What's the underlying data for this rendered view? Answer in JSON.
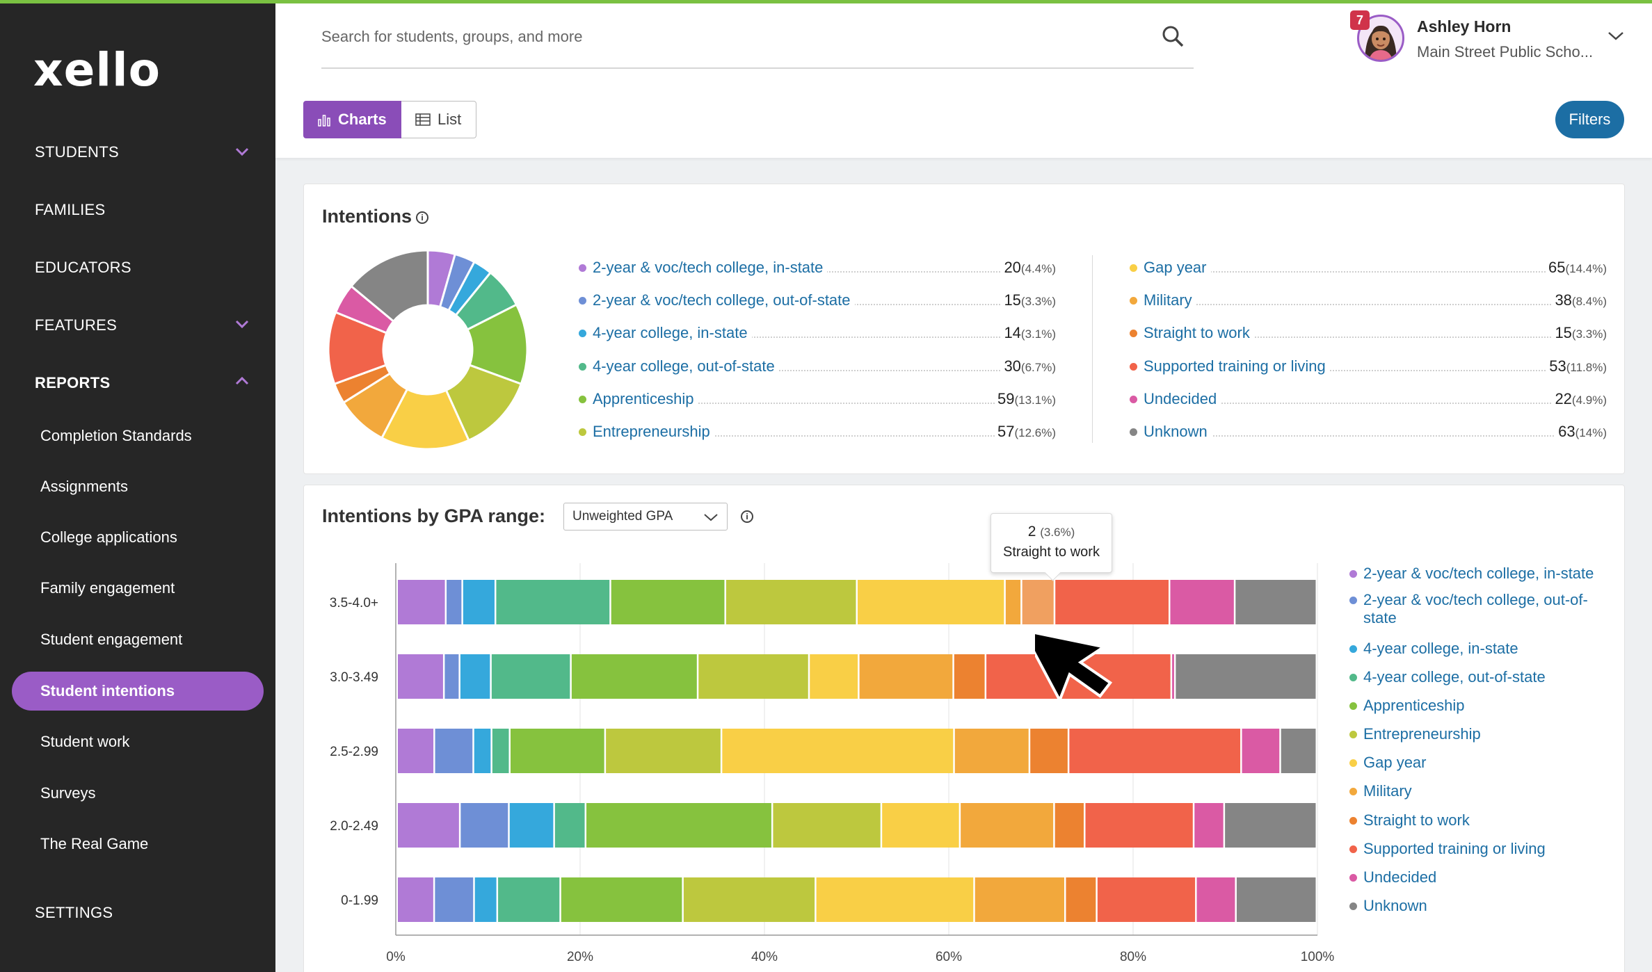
{
  "brand": {
    "logo": "xello",
    "accent": "#7ac142",
    "primary": "#9a5cc6",
    "link": "#1c6ea4"
  },
  "sidebar": {
    "top_items": [
      {
        "label": "STUDENTS",
        "expanded": false
      },
      {
        "label": "FAMILIES"
      },
      {
        "label": "EDUCATORS"
      },
      {
        "label": "FEATURES",
        "expanded": false
      },
      {
        "label": "REPORTS",
        "expanded": true
      }
    ],
    "report_items": [
      "Completion Standards",
      "Assignments",
      "College applications",
      "Family engagement",
      "Student engagement",
      "Student intentions",
      "Student work",
      "Surveys",
      "The Real Game"
    ],
    "active_item": "Student intentions",
    "settings": "SETTINGS"
  },
  "header": {
    "search_placeholder": "Search for students, groups, and more",
    "user_name": "Ashley Horn",
    "user_school": "Main Street Public Scho...",
    "notification_count": "7",
    "view_charts": "Charts",
    "view_list": "List",
    "filters": "Filters"
  },
  "intentions": {
    "title": "Intentions",
    "categories": [
      {
        "label": "2-year & voc/tech college, in-state",
        "count": "20",
        "pct": "(4.4%)",
        "color": "#b07ad6"
      },
      {
        "label": "2-year & voc/tech college, out-of-state",
        "count": "15",
        "pct": "(3.3%)",
        "color": "#6e8fd6"
      },
      {
        "label": "4-year college, in-state",
        "count": "14",
        "pct": "(3.1%)",
        "color": "#35a8dc"
      },
      {
        "label": "4-year college, out-of-state",
        "count": "30",
        "pct": "(6.7%)",
        "color": "#52b98a"
      },
      {
        "label": "Apprenticeship",
        "count": "59",
        "pct": "(13.1%)",
        "color": "#86c23e"
      },
      {
        "label": "Entrepreneurship",
        "count": "57",
        "pct": "(12.6%)",
        "color": "#bdc83e"
      },
      {
        "label": "Gap year",
        "count": "65",
        "pct": "(14.4%)",
        "color": "#f9cf46"
      },
      {
        "label": "Military",
        "count": "38",
        "pct": "(8.4%)",
        "color": "#f2a83c"
      },
      {
        "label": "Straight to work",
        "count": "15",
        "pct": "(3.3%)",
        "color": "#ec8230"
      },
      {
        "label": "Supported training or living",
        "count": "53",
        "pct": "(11.8%)",
        "color": "#f1634a"
      },
      {
        "label": "Undecided",
        "count": "22",
        "pct": "(4.9%)",
        "color": "#da5aa4"
      },
      {
        "label": "Unknown",
        "count": "63",
        "pct": "(14%)",
        "color": "#858585"
      }
    ]
  },
  "gpa_chart": {
    "title": "Intentions by GPA range:",
    "select_value": "Unweighted GPA",
    "tooltip_value": "2",
    "tooltip_pct": "(3.6%)",
    "tooltip_label": "Straight to work",
    "x_ticks": [
      "0%",
      "20%",
      "40%",
      "60%",
      "80%",
      "100%"
    ],
    "highlight": {
      "row": 0,
      "segment": 8
    }
  },
  "chart_data": {
    "type": "bar",
    "orientation": "horizontal",
    "stacked": "100%",
    "categories": [
      "3.5-4.0+",
      "3.0-3.49",
      "2.5-2.99",
      "2.0-2.49",
      "0-1.99"
    ],
    "xlim": [
      0,
      100
    ],
    "series": [
      {
        "name": "2-year & voc/tech college, in-state",
        "values": [
          5.3,
          5.1,
          4.1,
          6.8,
          4.0
        ]
      },
      {
        "name": "2-year & voc/tech college, out-of-state",
        "values": [
          1.8,
          1.7,
          4.3,
          5.3,
          4.3
        ]
      },
      {
        "name": "4-year college, in-state",
        "values": [
          3.6,
          3.4,
          2.0,
          4.9,
          2.5
        ]
      },
      {
        "name": "4-year college, out-of-state",
        "values": [
          12.5,
          8.7,
          2.0,
          3.4,
          6.8
        ]
      },
      {
        "name": "Apprenticeship",
        "values": [
          12.5,
          13.8,
          10.5,
          20.2,
          13.2
        ]
      },
      {
        "name": "Entrepreneurship",
        "values": [
          14.3,
          12.1,
          12.8,
          11.8,
          14.3
        ]
      },
      {
        "name": "Gap year",
        "values": [
          16.1,
          5.4,
          25.6,
          8.5,
          17.1
        ]
      },
      {
        "name": "Military",
        "values": [
          1.8,
          10.3,
          8.3,
          10.2,
          9.8
        ]
      },
      {
        "name": "Straight to work",
        "values": [
          3.6,
          3.5,
          4.3,
          3.3,
          3.4
        ]
      },
      {
        "name": "Supported training or living",
        "values": [
          12.5,
          20.2,
          19.0,
          11.8,
          10.7
        ]
      },
      {
        "name": "Undecided",
        "values": [
          7.1,
          0.4,
          4.3,
          3.3,
          4.3
        ]
      },
      {
        "name": "Unknown",
        "values": [
          8.9,
          15.4,
          4.0,
          10.0,
          8.7
        ]
      }
    ]
  }
}
